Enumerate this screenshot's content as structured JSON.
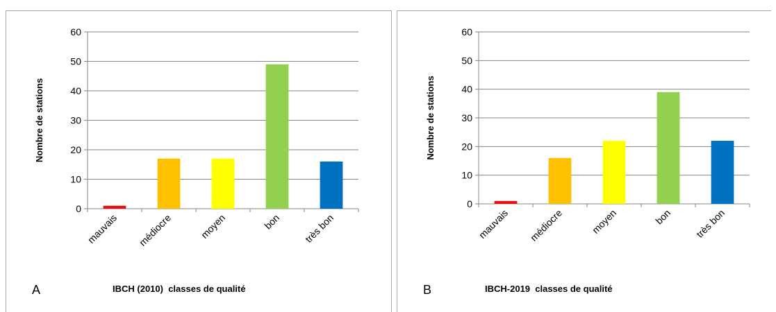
{
  "chart_data": [
    {
      "type": "bar",
      "panel_label": "A",
      "categories": [
        "mauvais",
        "médiocre",
        "moyen",
        "bon",
        "très bon"
      ],
      "values": [
        1,
        17,
        17,
        49,
        16
      ],
      "bar_colors": [
        "#e8100f",
        "#ffc000",
        "#ffff00",
        "#92d050",
        "#0070c0"
      ],
      "xlabel": "IBCH (2010)  classes de qualité",
      "ylabel": "Nombre de stations",
      "ylim": [
        0,
        60
      ],
      "yticks": [
        0,
        10,
        20,
        30,
        40,
        50,
        60
      ],
      "grid": true,
      "legend": "none"
    },
    {
      "type": "bar",
      "panel_label": "B",
      "categories": [
        "mauvais",
        "médiocre",
        "moyen",
        "bon",
        "très bon"
      ],
      "values": [
        1,
        16,
        22,
        39,
        22
      ],
      "bar_colors": [
        "#e8100f",
        "#ffc000",
        "#ffff00",
        "#92d050",
        "#0070c0"
      ],
      "xlabel": "IBCH-2019  classes de qualité",
      "ylabel": "Nombre de stations",
      "ylim": [
        0,
        60
      ],
      "yticks": [
        0,
        10,
        20,
        30,
        40,
        50,
        60
      ],
      "grid": true,
      "legend": "none"
    }
  ]
}
